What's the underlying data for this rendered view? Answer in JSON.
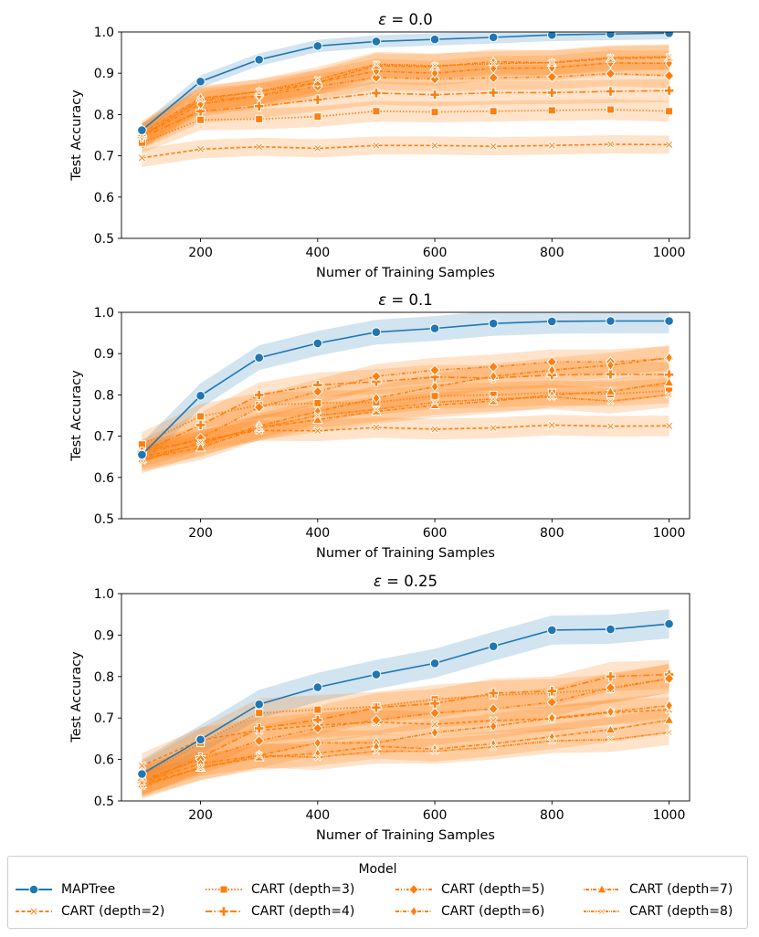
{
  "chart_data": [
    {
      "type": "line",
      "title": "ε = 0.0",
      "title_symbol": "ε",
      "title_rest": " = 0.0",
      "xlabel": "Numer of Training Samples",
      "ylabel": "Test Accuracy",
      "xlim": [
        65,
        1035
      ],
      "ylim": [
        0.5,
        1.0
      ],
      "xticks": [
        200,
        400,
        600,
        800,
        1000
      ],
      "yticks": [
        0.5,
        0.6,
        0.7,
        0.8,
        0.9,
        1.0
      ],
      "ytick_labels": [
        "0.5",
        "0.6",
        "0.7",
        "0.8",
        "0.9",
        "1.0"
      ],
      "x": [
        100,
        200,
        300,
        400,
        500,
        600,
        700,
        800,
        900,
        1000
      ],
      "series": [
        {
          "name": "MAPTree",
          "values": [
            0.762,
            0.88,
            0.933,
            0.966,
            0.977,
            0.982,
            0.987,
            0.993,
            0.995,
            0.997
          ],
          "band": 0.015
        },
        {
          "name": "CART (depth=2)",
          "values": [
            0.695,
            0.716,
            0.722,
            0.718,
            0.725,
            0.725,
            0.723,
            0.725,
            0.728,
            0.727
          ],
          "band": 0.022
        },
        {
          "name": "CART (depth=3)",
          "values": [
            0.732,
            0.787,
            0.789,
            0.795,
            0.808,
            0.806,
            0.808,
            0.81,
            0.812,
            0.808
          ],
          "band": 0.025
        },
        {
          "name": "CART (depth=4)",
          "values": [
            0.745,
            0.808,
            0.82,
            0.836,
            0.852,
            0.848,
            0.853,
            0.853,
            0.856,
            0.858
          ],
          "band": 0.028
        },
        {
          "name": "CART (depth=5)",
          "values": [
            0.75,
            0.833,
            0.845,
            0.868,
            0.89,
            0.886,
            0.889,
            0.891,
            0.899,
            0.894
          ],
          "band": 0.03
        },
        {
          "name": "CART (depth=6)",
          "values": [
            0.748,
            0.825,
            0.846,
            0.878,
            0.905,
            0.9,
            0.912,
            0.913,
            0.925,
            0.924
          ],
          "band": 0.03
        },
        {
          "name": "CART (depth=7)",
          "values": [
            0.755,
            0.84,
            0.855,
            0.878,
            0.918,
            0.916,
            0.928,
            0.925,
            0.935,
            0.938
          ],
          "band": 0.03
        },
        {
          "name": "CART (depth=8)",
          "values": [
            0.748,
            0.836,
            0.856,
            0.885,
            0.922,
            0.918,
            0.923,
            0.926,
            0.938,
            0.94
          ],
          "band": 0.03
        }
      ]
    },
    {
      "type": "line",
      "title": "ε = 0.1",
      "title_symbol": "ε",
      "title_rest": " = 0.1",
      "xlabel": "Numer of Training Samples",
      "ylabel": "Test Accuracy",
      "xlim": [
        65,
        1035
      ],
      "ylim": [
        0.5,
        1.0
      ],
      "xticks": [
        200,
        400,
        600,
        800,
        1000
      ],
      "yticks": [
        0.5,
        0.6,
        0.7,
        0.8,
        0.9,
        1.0
      ],
      "ytick_labels": [
        "0.5",
        "0.6",
        "0.7",
        "0.8",
        "0.9",
        "1.0"
      ],
      "x": [
        100,
        200,
        300,
        400,
        500,
        600,
        700,
        800,
        900,
        1000
      ],
      "series": [
        {
          "name": "MAPTree",
          "values": [
            0.655,
            0.798,
            0.89,
            0.925,
            0.952,
            0.961,
            0.973,
            0.978,
            0.979,
            0.979
          ],
          "band": 0.03
        },
        {
          "name": "CART (depth=2)",
          "values": [
            0.664,
            0.69,
            0.714,
            0.713,
            0.721,
            0.717,
            0.72,
            0.727,
            0.724,
            0.725
          ],
          "band": 0.025
        },
        {
          "name": "CART (depth=3)",
          "values": [
            0.68,
            0.748,
            0.775,
            0.78,
            0.782,
            0.797,
            0.8,
            0.805,
            0.802,
            0.81
          ],
          "band": 0.03
        },
        {
          "name": "CART (depth=4)",
          "values": [
            0.662,
            0.727,
            0.8,
            0.824,
            0.832,
            0.843,
            0.841,
            0.848,
            0.85,
            0.849
          ],
          "band": 0.03
        },
        {
          "name": "CART (depth=5)",
          "values": [
            0.655,
            0.695,
            0.77,
            0.808,
            0.845,
            0.86,
            0.868,
            0.88,
            0.88,
            0.888
          ],
          "band": 0.03
        },
        {
          "name": "CART (depth=6)",
          "values": [
            0.65,
            0.68,
            0.725,
            0.76,
            0.792,
            0.82,
            0.845,
            0.86,
            0.872,
            0.89
          ],
          "band": 0.03
        },
        {
          "name": "CART (depth=7)",
          "values": [
            0.645,
            0.672,
            0.72,
            0.74,
            0.76,
            0.775,
            0.785,
            0.8,
            0.808,
            0.83
          ],
          "band": 0.03
        },
        {
          "name": "CART (depth=8)",
          "values": [
            0.64,
            0.685,
            0.72,
            0.75,
            0.765,
            0.782,
            0.79,
            0.795,
            0.785,
            0.8
          ],
          "band": 0.03
        }
      ]
    },
    {
      "type": "line",
      "title": "ε = 0.25",
      "title_symbol": "ε",
      "title_rest": " = 0.25",
      "xlabel": "Numer of Training Samples",
      "ylabel": "Test Accuracy",
      "xlim": [
        65,
        1035
      ],
      "ylim": [
        0.5,
        1.0
      ],
      "xticks": [
        200,
        400,
        600,
        800,
        1000
      ],
      "yticks": [
        0.5,
        0.6,
        0.7,
        0.8,
        0.9,
        1.0
      ],
      "ytick_labels": [
        "0.5",
        "0.6",
        "0.7",
        "0.8",
        "0.9",
        "1.0"
      ],
      "x": [
        100,
        200,
        300,
        400,
        500,
        600,
        700,
        800,
        900,
        1000
      ],
      "series": [
        {
          "name": "MAPTree",
          "values": [
            0.565,
            0.648,
            0.733,
            0.774,
            0.805,
            0.832,
            0.873,
            0.912,
            0.914,
            0.927
          ],
          "band": 0.035
        },
        {
          "name": "CART (depth=2)",
          "values": [
            0.585,
            0.647,
            0.67,
            0.683,
            0.69,
            0.685,
            0.694,
            0.698,
            0.713,
            0.72
          ],
          "band": 0.03
        },
        {
          "name": "CART (depth=3)",
          "values": [
            0.56,
            0.64,
            0.712,
            0.72,
            0.728,
            0.745,
            0.755,
            0.76,
            0.77,
            0.795
          ],
          "band": 0.035
        },
        {
          "name": "CART (depth=4)",
          "values": [
            0.545,
            0.605,
            0.675,
            0.695,
            0.725,
            0.735,
            0.76,
            0.765,
            0.8,
            0.805
          ],
          "band": 0.035
        },
        {
          "name": "CART (depth=5)",
          "values": [
            0.55,
            0.6,
            0.645,
            0.675,
            0.695,
            0.712,
            0.722,
            0.738,
            0.773,
            0.795
          ],
          "band": 0.035
        },
        {
          "name": "CART (depth=6)",
          "values": [
            0.545,
            0.59,
            0.61,
            0.64,
            0.64,
            0.665,
            0.68,
            0.7,
            0.715,
            0.73
          ],
          "band": 0.03
        },
        {
          "name": "CART (depth=7)",
          "values": [
            0.54,
            0.58,
            0.605,
            0.615,
            0.632,
            0.625,
            0.638,
            0.655,
            0.672,
            0.695
          ],
          "band": 0.03
        },
        {
          "name": "CART (depth=8)",
          "values": [
            0.535,
            0.58,
            0.61,
            0.605,
            0.62,
            0.62,
            0.63,
            0.645,
            0.648,
            0.665
          ],
          "band": 0.03
        }
      ]
    }
  ],
  "legend": {
    "title": "Model",
    "entries": [
      {
        "label": "MAPTree",
        "marker": "circle",
        "dash": "solid",
        "color": "#1f77b4"
      },
      {
        "label": "CART (depth=2)",
        "marker": "x",
        "dash": "4,2.5",
        "color": "#ff7f0e"
      },
      {
        "label": "CART (depth=3)",
        "marker": "square",
        "dash": "1.5,2",
        "color": "#ff7f0e"
      },
      {
        "label": "CART (depth=4)",
        "marker": "plus",
        "dash": "7,2.5,1.5,2.5",
        "color": "#ff7f0e"
      },
      {
        "label": "CART (depth=5)",
        "marker": "diamond",
        "dash": "4,2,1,2,1,2",
        "color": "#ff7f0e"
      },
      {
        "label": "CART (depth=6)",
        "marker": "thin-diamond",
        "dash": "4,1.5,1,1.5",
        "color": "#ff7f0e"
      },
      {
        "label": "CART (depth=7)",
        "marker": "triangle",
        "dash": "1,1,4,2",
        "color": "#ff7f0e"
      },
      {
        "label": "CART (depth=8)",
        "marker": "x-thin",
        "dash": "3,1,1,1,1,1",
        "color": "#ff7f0e"
      }
    ]
  },
  "colors": {
    "blue": "#1f77b4",
    "orange": "#ff7f0e"
  }
}
